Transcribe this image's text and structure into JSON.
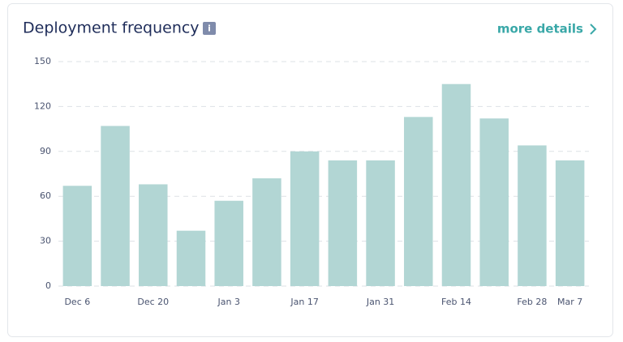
{
  "chart_data": {
    "type": "bar",
    "title": "Deployment frequency",
    "categories": [
      "Dec 6",
      null,
      "Dec 20",
      null,
      "Jan 3",
      null,
      "Jan 17",
      null,
      "Jan 31",
      null,
      "Feb 14",
      null,
      "Feb 28",
      "Mar 7"
    ],
    "values": [
      67,
      107,
      68,
      37,
      57,
      72,
      90,
      84,
      84,
      113,
      135,
      112,
      94,
      84
    ],
    "color": "#b2d6d4",
    "ylim": [
      0,
      150
    ],
    "yticks": [
      0,
      30,
      60,
      90,
      120,
      150
    ],
    "grid": true
  },
  "header": {
    "info_icon": "i",
    "link": "more details"
  }
}
